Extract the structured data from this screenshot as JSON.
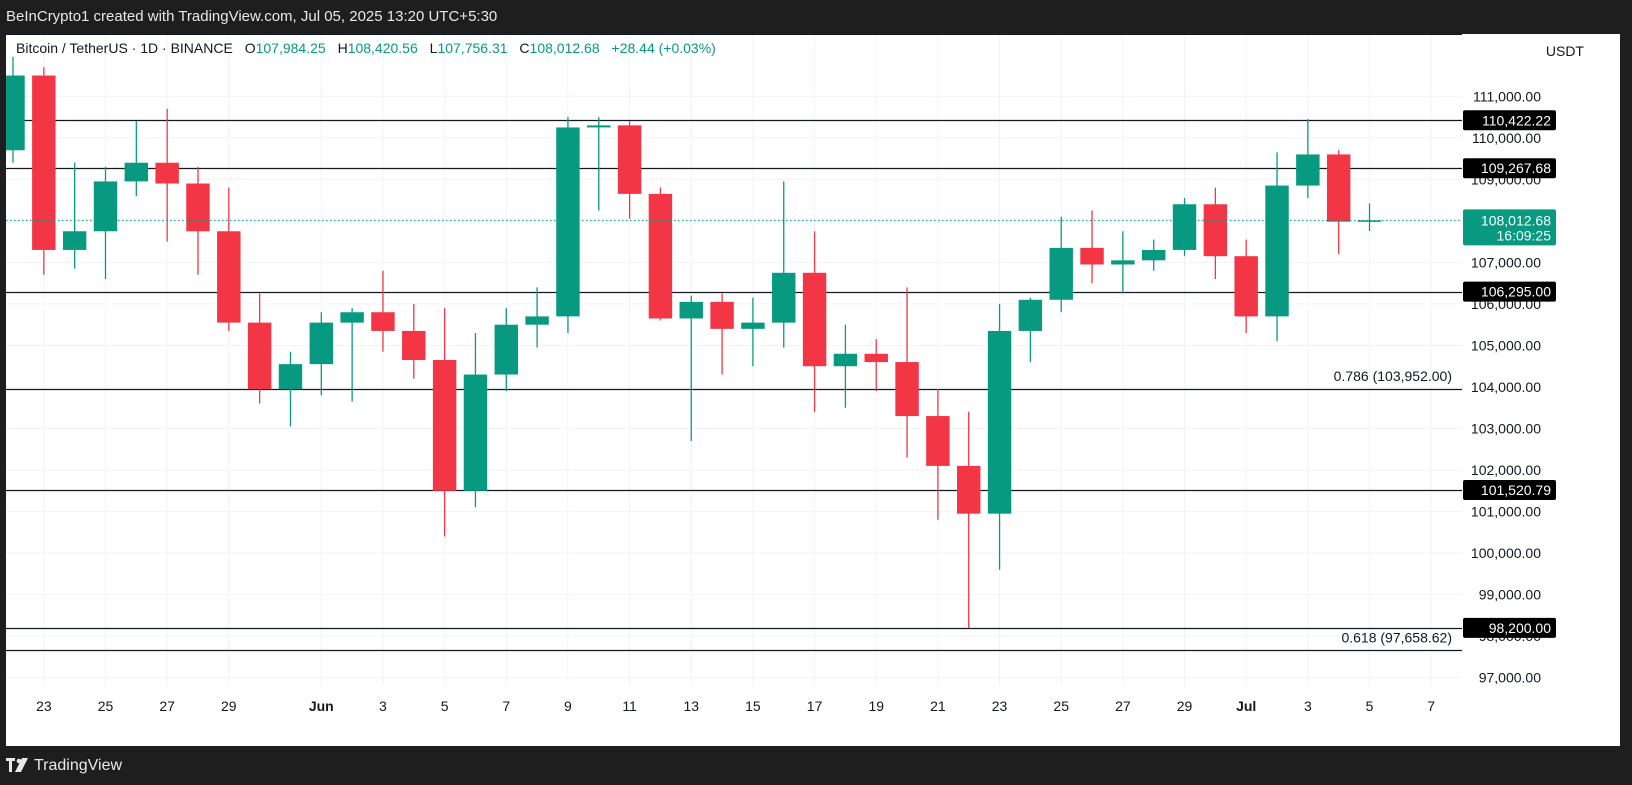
{
  "header": {
    "attribution": "BeInCrypto1 created with TradingView.com, Jul 05, 2025 13:20 UTC+5:30"
  },
  "legend": {
    "symbol": "Bitcoin / TetherUS · 1D · BINANCE",
    "open_label": "O",
    "open": "107,984.25",
    "high_label": "H",
    "high": "108,420.56",
    "low_label": "L",
    "low": "107,756.31",
    "close_label": "C",
    "close": "108,012.68",
    "change": "+28.44 (+0.03%)"
  },
  "footer": {
    "brand": "TradingView"
  },
  "colors": {
    "up": "#089981",
    "down": "#f23645",
    "level_line": "#131722",
    "grid": "#f0f3fa",
    "price_line": "#089981"
  },
  "chart_data": {
    "type": "candlestick",
    "title": "",
    "xlabel": "",
    "ylabel": "",
    "y_unit": "USDT",
    "ylim": [
      96800,
      112500
    ],
    "grid": true,
    "y_ticks": [
      {
        "value": 97000,
        "label": "97,000.00"
      },
      {
        "value": 98000,
        "label": "98,000.00"
      },
      {
        "value": 99000,
        "label": "99,000.00"
      },
      {
        "value": 100000,
        "label": "100,000.00"
      },
      {
        "value": 101000,
        "label": "101,000.00"
      },
      {
        "value": 102000,
        "label": "102,000.00"
      },
      {
        "value": 103000,
        "label": "103,000.00"
      },
      {
        "value": 104000,
        "label": "104,000.00"
      },
      {
        "value": 105000,
        "label": "105,000.00"
      },
      {
        "value": 106000,
        "label": "106,000.00"
      },
      {
        "value": 107000,
        "label": "107,000.00"
      },
      {
        "value": 108000,
        "label": "108,000.00"
      },
      {
        "value": 109000,
        "label": "109,000.00"
      },
      {
        "value": 110000,
        "label": "110,000.00"
      },
      {
        "value": 111000,
        "label": "111,000.00"
      }
    ],
    "x_ticks": [
      {
        "date": "2025-05-23",
        "label": "23"
      },
      {
        "date": "2025-05-25",
        "label": "25"
      },
      {
        "date": "2025-05-27",
        "label": "27"
      },
      {
        "date": "2025-05-29",
        "label": "29"
      },
      {
        "date": "2025-06-01",
        "label": "Jun",
        "bold": true
      },
      {
        "date": "2025-06-03",
        "label": "3"
      },
      {
        "date": "2025-06-05",
        "label": "5"
      },
      {
        "date": "2025-06-07",
        "label": "7"
      },
      {
        "date": "2025-06-09",
        "label": "9"
      },
      {
        "date": "2025-06-11",
        "label": "11"
      },
      {
        "date": "2025-06-13",
        "label": "13"
      },
      {
        "date": "2025-06-15",
        "label": "15"
      },
      {
        "date": "2025-06-17",
        "label": "17"
      },
      {
        "date": "2025-06-19",
        "label": "19"
      },
      {
        "date": "2025-06-21",
        "label": "21"
      },
      {
        "date": "2025-06-23",
        "label": "23"
      },
      {
        "date": "2025-06-25",
        "label": "25"
      },
      {
        "date": "2025-06-27",
        "label": "27"
      },
      {
        "date": "2025-06-29",
        "label": "29"
      },
      {
        "date": "2025-07-01",
        "label": "Jul",
        "bold": true
      },
      {
        "date": "2025-07-03",
        "label": "3"
      },
      {
        "date": "2025-07-05",
        "label": "5"
      },
      {
        "date": "2025-07-07",
        "label": "7"
      }
    ],
    "x_range": [
      "2025-05-22",
      "2025-07-08"
    ],
    "candles": [
      {
        "date": "2025-05-22",
        "open": 109700,
        "high": 111950,
        "low": 109400,
        "close": 111500
      },
      {
        "date": "2025-05-23",
        "open": 111500,
        "high": 111700,
        "low": 106700,
        "close": 107300
      },
      {
        "date": "2025-05-24",
        "open": 107300,
        "high": 109400,
        "low": 106850,
        "close": 107750
      },
      {
        "date": "2025-05-25",
        "open": 107750,
        "high": 109300,
        "low": 106600,
        "close": 108950
      },
      {
        "date": "2025-05-26",
        "open": 108950,
        "high": 110400,
        "low": 108600,
        "close": 109400
      },
      {
        "date": "2025-05-27",
        "open": 109400,
        "high": 110700,
        "low": 107500,
        "close": 108900
      },
      {
        "date": "2025-05-28",
        "open": 108900,
        "high": 109300,
        "low": 106700,
        "close": 107750
      },
      {
        "date": "2025-05-29",
        "open": 107750,
        "high": 108800,
        "low": 105350,
        "close": 105550
      },
      {
        "date": "2025-05-30",
        "open": 105550,
        "high": 106250,
        "low": 103600,
        "close": 103950
      },
      {
        "date": "2025-05-31",
        "open": 103950,
        "high": 104850,
        "low": 103050,
        "close": 104550
      },
      {
        "date": "2025-06-01",
        "open": 104550,
        "high": 105800,
        "low": 103800,
        "close": 105550
      },
      {
        "date": "2025-06-02",
        "open": 105550,
        "high": 105900,
        "low": 103650,
        "close": 105800
      },
      {
        "date": "2025-06-03",
        "open": 105800,
        "high": 106800,
        "low": 104850,
        "close": 105350
      },
      {
        "date": "2025-06-04",
        "open": 105350,
        "high": 106000,
        "low": 104200,
        "close": 104650
      },
      {
        "date": "2025-06-05",
        "open": 104650,
        "high": 105900,
        "low": 100400,
        "close": 101500
      },
      {
        "date": "2025-06-06",
        "open": 101500,
        "high": 105300,
        "low": 101100,
        "close": 104300
      },
      {
        "date": "2025-06-07",
        "open": 104300,
        "high": 105900,
        "low": 103900,
        "close": 105500
      },
      {
        "date": "2025-06-08",
        "open": 105500,
        "high": 106400,
        "low": 104950,
        "close": 105700
      },
      {
        "date": "2025-06-09",
        "open": 105700,
        "high": 110500,
        "low": 105300,
        "close": 110250
      },
      {
        "date": "2025-06-10",
        "open": 110250,
        "high": 110500,
        "low": 108250,
        "close": 110300
      },
      {
        "date": "2025-06-11",
        "open": 110300,
        "high": 110400,
        "low": 108050,
        "close": 108650
      },
      {
        "date": "2025-06-12",
        "open": 108650,
        "high": 108800,
        "low": 105600,
        "close": 105650
      },
      {
        "date": "2025-06-13",
        "open": 105650,
        "high": 106200,
        "low": 102700,
        "close": 106050
      },
      {
        "date": "2025-06-14",
        "open": 106050,
        "high": 106250,
        "low": 104300,
        "close": 105400
      },
      {
        "date": "2025-06-15",
        "open": 105400,
        "high": 106150,
        "low": 104500,
        "close": 105550
      },
      {
        "date": "2025-06-16",
        "open": 105550,
        "high": 108950,
        "low": 104950,
        "close": 106750
      },
      {
        "date": "2025-06-17",
        "open": 106750,
        "high": 107750,
        "low": 103400,
        "close": 104500
      },
      {
        "date": "2025-06-18",
        "open": 104500,
        "high": 105500,
        "low": 103500,
        "close": 104800
      },
      {
        "date": "2025-06-19",
        "open": 104800,
        "high": 105150,
        "low": 103900,
        "close": 104600
      },
      {
        "date": "2025-06-20",
        "open": 104600,
        "high": 106400,
        "low": 102300,
        "close": 103300
      },
      {
        "date": "2025-06-21",
        "open": 103300,
        "high": 103950,
        "low": 100800,
        "close": 102100
      },
      {
        "date": "2025-06-22",
        "open": 102100,
        "high": 103400,
        "low": 98200,
        "close": 100950
      },
      {
        "date": "2025-06-23",
        "open": 100950,
        "high": 106000,
        "low": 99600,
        "close": 105350
      },
      {
        "date": "2025-06-24",
        "open": 105350,
        "high": 106150,
        "low": 104600,
        "close": 106100
      },
      {
        "date": "2025-06-25",
        "open": 106100,
        "high": 108100,
        "low": 105800,
        "close": 107350
      },
      {
        "date": "2025-06-26",
        "open": 107350,
        "high": 108250,
        "low": 106500,
        "close": 106950
      },
      {
        "date": "2025-06-27",
        "open": 106950,
        "high": 107750,
        "low": 106250,
        "close": 107050
      },
      {
        "date": "2025-06-28",
        "open": 107050,
        "high": 107550,
        "low": 106800,
        "close": 107300
      },
      {
        "date": "2025-06-29",
        "open": 107300,
        "high": 108550,
        "low": 107150,
        "close": 108400
      },
      {
        "date": "2025-06-30",
        "open": 108400,
        "high": 108800,
        "low": 106600,
        "close": 107150
      },
      {
        "date": "2025-07-01",
        "open": 107150,
        "high": 107550,
        "low": 105300,
        "close": 105700
      },
      {
        "date": "2025-07-02",
        "open": 105700,
        "high": 109650,
        "low": 105100,
        "close": 108850
      },
      {
        "date": "2025-07-03",
        "open": 108850,
        "high": 110450,
        "low": 108550,
        "close": 109600
      },
      {
        "date": "2025-07-04",
        "open": 109600,
        "high": 109700,
        "low": 107200,
        "close": 107980
      },
      {
        "date": "2025-07-05",
        "open": 107984.25,
        "high": 108420.56,
        "low": 107756.31,
        "close": 108012.68
      }
    ],
    "levels": [
      {
        "value": 110422.22,
        "label": "110,422.22",
        "tag": true
      },
      {
        "value": 109267.68,
        "label": "109,267.68",
        "tag": true
      },
      {
        "value": 106295.0,
        "label": "106,295.00",
        "tag": true
      },
      {
        "value": 103952.0,
        "label": "0.786 (103,952.00)",
        "tag": false
      },
      {
        "value": 101520.79,
        "label": "101,520.79",
        "tag": true
      },
      {
        "value": 98200.0,
        "label": "98,200.00",
        "tag": true
      },
      {
        "value": 97658.62,
        "label": "0.618 (97,658.62)",
        "tag": false
      }
    ],
    "last_price": {
      "value": 108012.68,
      "label": "108,012.68",
      "countdown": "16:09:25"
    }
  }
}
